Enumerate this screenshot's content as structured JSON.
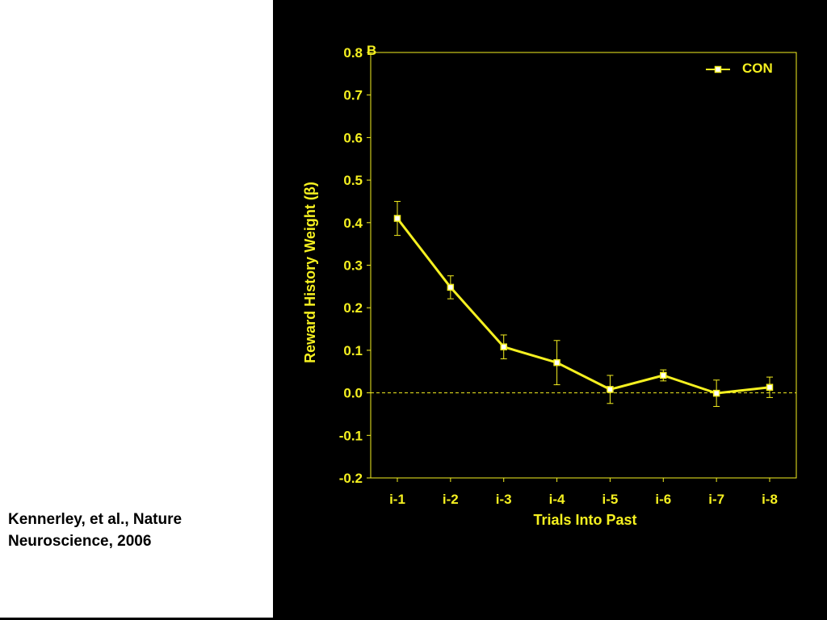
{
  "citation": {
    "line1": "Kennerley, et al., Nature",
    "line2": "Neuroscience, 2006"
  },
  "colors": {
    "background": "#000000",
    "foreground": "#f5f020",
    "citation_text": "#000000"
  },
  "chart_data": {
    "type": "line",
    "panel_label": "B",
    "xlabel": "Trials Into Past",
    "ylabel": "Reward History Weight (β)",
    "categories": [
      "i-1",
      "i-2",
      "i-3",
      "i-4",
      "i-5",
      "i-6",
      "i-7",
      "i-8"
    ],
    "ylim": [
      -0.2,
      0.8
    ],
    "yticks": [
      "0.8",
      "0.7",
      "0.6",
      "0.5",
      "0.4",
      "0.3",
      "0.2",
      "0.1",
      "0.0",
      "-0.1",
      "-0.2"
    ],
    "ytick_values": [
      0.8,
      0.7,
      0.6,
      0.5,
      0.4,
      0.3,
      0.2,
      0.1,
      0.0,
      -0.1,
      -0.2
    ],
    "series": [
      {
        "name": "CON",
        "values": [
          0.41,
          0.248,
          0.108,
          0.071,
          0.008,
          0.041,
          -0.001,
          0.013
        ],
        "error": [
          0.04,
          0.027,
          0.028,
          0.052,
          0.033,
          0.013,
          0.031,
          0.024
        ]
      }
    ],
    "reference_line": {
      "y": 0.0,
      "style": "dashed"
    },
    "legend": {
      "position": "top-right"
    },
    "grid": false
  }
}
